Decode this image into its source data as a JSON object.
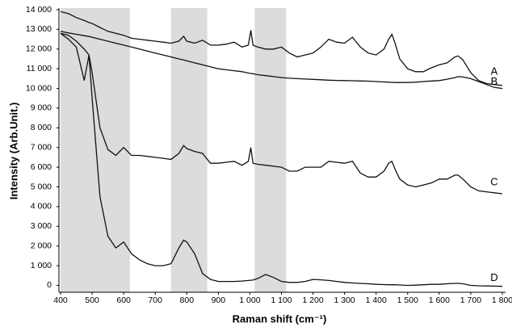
{
  "chart_data": {
    "type": "line",
    "xlabel": "Raman shift (cm⁻¹)",
    "ylabel": "Intensity (Arb.Unit.)",
    "x": [
      400,
      425,
      450,
      475,
      490,
      500,
      525,
      550,
      575,
      600,
      625,
      650,
      675,
      700,
      725,
      750,
      775,
      790,
      800,
      825,
      850,
      875,
      900,
      925,
      950,
      975,
      995,
      1003,
      1010,
      1025,
      1050,
      1075,
      1100,
      1125,
      1150,
      1175,
      1200,
      1225,
      1250,
      1275,
      1300,
      1325,
      1350,
      1375,
      1400,
      1425,
      1440,
      1450,
      1460,
      1475,
      1500,
      1525,
      1550,
      1575,
      1600,
      1625,
      1650,
      1660,
      1675,
      1700,
      1725,
      1750,
      1775,
      1800
    ],
    "series": [
      {
        "name": "A",
        "color": "#111111",
        "values": [
          13900,
          13800,
          13600,
          13450,
          13350,
          13300,
          13100,
          12900,
          12800,
          12700,
          12550,
          12500,
          12450,
          12400,
          12350,
          12300,
          12400,
          12650,
          12400,
          12300,
          12450,
          12200,
          12200,
          12250,
          12350,
          12100,
          12200,
          12950,
          12200,
          12100,
          12000,
          12000,
          12100,
          11800,
          11600,
          11700,
          11800,
          12100,
          12500,
          12350,
          12300,
          12600,
          12100,
          11800,
          11700,
          12000,
          12500,
          12750,
          12300,
          11500,
          11000,
          10850,
          10850,
          11050,
          11200,
          11300,
          11600,
          11650,
          11450,
          10800,
          10400,
          10250,
          10200,
          10150
        ]
      },
      {
        "name": "B",
        "color": "#111111",
        "values": [
          12900,
          12820,
          12750,
          12680,
          12640,
          12600,
          12500,
          12400,
          12300,
          12200,
          12100,
          12000,
          11900,
          11800,
          11700,
          11600,
          11500,
          11450,
          11400,
          11300,
          11200,
          11100,
          11000,
          10950,
          10900,
          10850,
          10780,
          10760,
          10750,
          10700,
          10650,
          10600,
          10550,
          10520,
          10500,
          10480,
          10460,
          10440,
          10420,
          10410,
          10400,
          10390,
          10380,
          10370,
          10350,
          10330,
          10320,
          10310,
          10300,
          10300,
          10300,
          10320,
          10350,
          10380,
          10400,
          10470,
          10550,
          10600,
          10580,
          10500,
          10350,
          10200,
          10050,
          10000
        ]
      },
      {
        "name": "C",
        "color": "#111111",
        "values": [
          12800,
          12500,
          12100,
          10400,
          11700,
          10800,
          8000,
          6900,
          6600,
          7000,
          6600,
          6600,
          6550,
          6500,
          6450,
          6400,
          6700,
          7100,
          6950,
          6800,
          6700,
          6200,
          6200,
          6250,
          6300,
          6100,
          6300,
          7000,
          6200,
          6150,
          6100,
          6050,
          6000,
          5800,
          5800,
          6000,
          6000,
          6000,
          6300,
          6250,
          6200,
          6300,
          5700,
          5500,
          5500,
          5800,
          6200,
          6300,
          5900,
          5400,
          5100,
          5000,
          5100,
          5200,
          5400,
          5400,
          5600,
          5600,
          5400,
          5000,
          4800,
          4750,
          4700,
          4650
        ]
      },
      {
        "name": "D",
        "color": "#111111",
        "values": [
          12800,
          12700,
          12400,
          12000,
          11700,
          9500,
          4500,
          2500,
          1900,
          2200,
          1600,
          1300,
          1100,
          1000,
          1000,
          1100,
          1900,
          2300,
          2200,
          1600,
          600,
          300,
          200,
          200,
          200,
          220,
          250,
          260,
          270,
          350,
          550,
          400,
          200,
          150,
          150,
          200,
          300,
          280,
          250,
          200,
          150,
          120,
          100,
          80,
          50,
          40,
          30,
          30,
          30,
          20,
          0,
          10,
          30,
          50,
          50,
          80,
          100,
          100,
          80,
          0,
          -20,
          -30,
          -40,
          -50
        ]
      }
    ],
    "shaded_regions": [
      [
        400,
        620
      ],
      [
        750,
        865
      ],
      [
        1015,
        1115
      ]
    ],
    "shade_color": "#dcdcdc",
    "xlim": [
      400,
      1800
    ],
    "xticks": [
      400,
      500,
      600,
      700,
      800,
      900,
      {
        "value": 1000,
        "label": "1 000"
      },
      {
        "value": 1100,
        "label": "1 100"
      },
      {
        "value": 1200,
        "label": "1 200"
      },
      {
        "value": 1300,
        "label": "1 300"
      },
      {
        "value": 1400,
        "label": "1 400"
      },
      {
        "value": 1500,
        "label": "1 500"
      },
      {
        "value": 1600,
        "label": "1 600"
      },
      {
        "value": 1700,
        "label": "1 700"
      },
      {
        "value": 1800,
        "label": "1 800"
      }
    ],
    "ylim": [
      -350,
      14000
    ],
    "yticks": [
      0,
      {
        "value": 1000,
        "label": "1 000"
      },
      {
        "value": 2000,
        "label": "2 000"
      },
      {
        "value": 3000,
        "label": "3 000"
      },
      {
        "value": 4000,
        "label": "4 000"
      },
      {
        "value": 5000,
        "label": "5 000"
      },
      {
        "value": 6000,
        "label": "6 000"
      },
      {
        "value": 7000,
        "label": "7 000"
      },
      {
        "value": 8000,
        "label": "8 000"
      },
      {
        "value": 9000,
        "label": "9 000"
      },
      {
        "value": 10000,
        "label": "10 000"
      },
      {
        "value": 11000,
        "label": "11 000"
      },
      {
        "value": 12000,
        "label": "12 000"
      },
      {
        "value": 13000,
        "label": "13 000"
      },
      {
        "value": 14000,
        "label": "14 000"
      }
    ],
    "grid": false
  }
}
